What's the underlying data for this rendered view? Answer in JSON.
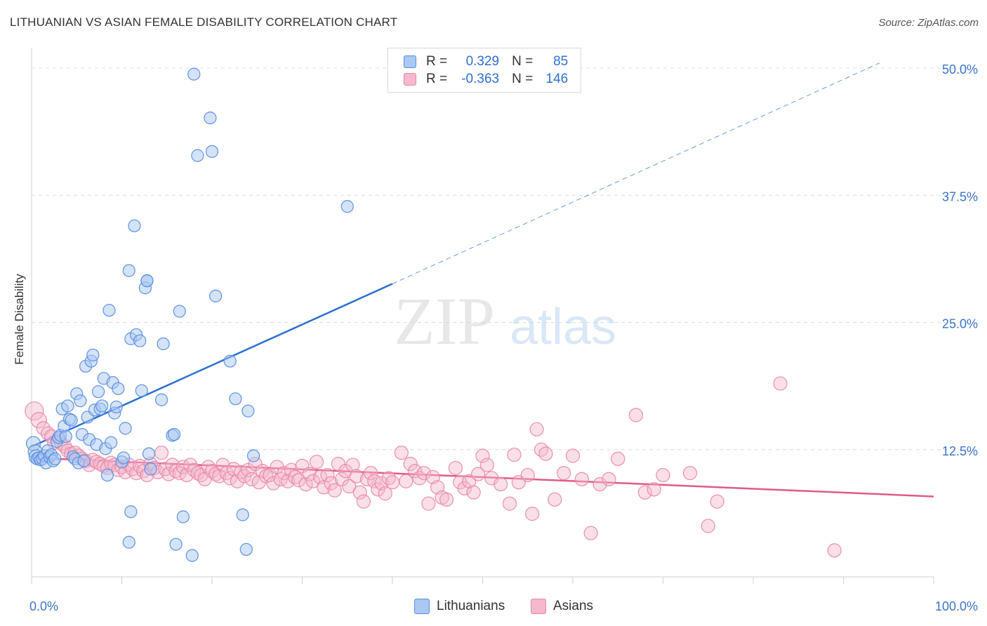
{
  "title": "LITHUANIAN VS ASIAN FEMALE DISABILITY CORRELATION CHART",
  "source": "Source: ZipAtlas.com",
  "watermark": {
    "zip": "ZIP",
    "atlas": "atlas"
  },
  "legend": {
    "r_label": "R =",
    "n_label": "N =",
    "lithuanians": {
      "r": "0.329",
      "n": "85"
    },
    "asians": {
      "r": "-0.363",
      "n": "146"
    }
  },
  "colors": {
    "lithuanians_fill": "#a9c8f2",
    "lithuanians_stroke": "#5b8fe0",
    "lithuanians_line": "#2b6fcf",
    "asians_fill": "#f5b8cc",
    "asians_stroke": "#e886a8",
    "asians_line": "#e05a8a",
    "axis_text": "#3b75c9"
  },
  "chart_data": {
    "type": "scatter",
    "title": "LITHUANIAN VS ASIAN FEMALE DISABILITY CORRELATION CHART",
    "xlabel": "",
    "ylabel": "Female Disability",
    "xlim": [
      0,
      100
    ],
    "ylim": [
      0,
      52
    ],
    "x_tick_labels": [
      "0.0%",
      "100.0%"
    ],
    "y_ticks": [
      12.5,
      25.0,
      37.5,
      50.0
    ],
    "y_tick_labels": [
      "12.5%",
      "25.0%",
      "37.5%",
      "50.0%"
    ],
    "grid": true,
    "legend_position": "bottom",
    "series": [
      {
        "name": "Lithuanians",
        "r": 0.329,
        "n": 85,
        "trend": {
          "x0": 0,
          "y0": 12.8,
          "x1": 40,
          "y1": 28.8,
          "dash_to_x": 94,
          "dash_to_y": 50.5
        },
        "points": [
          [
            0.2,
            13.1
          ],
          [
            0.4,
            12.3
          ],
          [
            0.5,
            11.8
          ],
          [
            0.6,
            11.6
          ],
          [
            0.8,
            11.7
          ],
          [
            1.0,
            11.5
          ],
          [
            1.2,
            11.6
          ],
          [
            1.4,
            11.9
          ],
          [
            1.6,
            11.2
          ],
          [
            1.8,
            12.4
          ],
          [
            2.0,
            11.8
          ],
          [
            2.2,
            12.0
          ],
          [
            2.4,
            11.4
          ],
          [
            2.6,
            11.6
          ],
          [
            2.8,
            13.3
          ],
          [
            3.0,
            13.7
          ],
          [
            3.2,
            13.9
          ],
          [
            3.4,
            16.5
          ],
          [
            3.6,
            14.8
          ],
          [
            3.8,
            13.8
          ],
          [
            4.0,
            16.8
          ],
          [
            4.2,
            15.5
          ],
          [
            4.4,
            15.4
          ],
          [
            4.6,
            11.8
          ],
          [
            4.8,
            11.6
          ],
          [
            5.0,
            18.0
          ],
          [
            5.2,
            11.2
          ],
          [
            5.4,
            17.3
          ],
          [
            5.6,
            14.0
          ],
          [
            5.8,
            11.4
          ],
          [
            6.0,
            20.7
          ],
          [
            6.2,
            15.7
          ],
          [
            6.4,
            13.5
          ],
          [
            6.6,
            21.2
          ],
          [
            6.8,
            21.8
          ],
          [
            7.0,
            16.4
          ],
          [
            7.2,
            13.0
          ],
          [
            7.4,
            18.2
          ],
          [
            7.6,
            16.5
          ],
          [
            7.8,
            16.8
          ],
          [
            8.0,
            19.5
          ],
          [
            8.2,
            12.6
          ],
          [
            8.4,
            10.0
          ],
          [
            8.6,
            26.2
          ],
          [
            8.8,
            13.2
          ],
          [
            9.0,
            19.1
          ],
          [
            9.2,
            16.1
          ],
          [
            9.4,
            16.7
          ],
          [
            9.6,
            18.5
          ],
          [
            10.0,
            11.3
          ],
          [
            10.2,
            11.7
          ],
          [
            10.4,
            14.6
          ],
          [
            10.8,
            30.1
          ],
          [
            11.0,
            23.4
          ],
          [
            11.4,
            34.5
          ],
          [
            11.6,
            23.8
          ],
          [
            12.0,
            23.2
          ],
          [
            12.2,
            18.3
          ],
          [
            12.6,
            28.4
          ],
          [
            12.8,
            29.1
          ],
          [
            13.0,
            12.1
          ],
          [
            13.2,
            10.6
          ],
          [
            14.4,
            17.4
          ],
          [
            14.6,
            22.9
          ],
          [
            15.6,
            13.9
          ],
          [
            15.8,
            14.0
          ],
          [
            16.4,
            26.1
          ],
          [
            16.8,
            5.9
          ],
          [
            18.0,
            49.4
          ],
          [
            18.4,
            41.4
          ],
          [
            19.8,
            45.1
          ],
          [
            20.0,
            41.8
          ],
          [
            20.4,
            27.6
          ],
          [
            22.0,
            21.2
          ],
          [
            22.6,
            17.5
          ],
          [
            23.4,
            6.1
          ],
          [
            23.8,
            2.7
          ],
          [
            24.0,
            16.3
          ],
          [
            24.6,
            11.9
          ],
          [
            35.0,
            36.4
          ],
          [
            12.8,
            29.1
          ],
          [
            11.0,
            6.4
          ],
          [
            10.8,
            3.4
          ],
          [
            16.0,
            3.2
          ],
          [
            17.8,
            2.1
          ]
        ]
      },
      {
        "name": "Asians",
        "r": -0.363,
        "n": 146,
        "trend": {
          "x0": 0,
          "y0": 11.7,
          "x1": 100,
          "y1": 7.9
        },
        "points": [
          [
            0.3,
            16.3
          ],
          [
            0.8,
            15.4
          ],
          [
            1.3,
            14.6
          ],
          [
            1.8,
            14.1
          ],
          [
            2.2,
            13.8
          ],
          [
            2.5,
            13.2
          ],
          [
            3.0,
            13.6
          ],
          [
            3.3,
            13.1
          ],
          [
            3.7,
            12.8
          ],
          [
            4.0,
            12.4
          ],
          [
            4.4,
            12.1
          ],
          [
            4.8,
            12.2
          ],
          [
            5.2,
            11.9
          ],
          [
            5.6,
            11.6
          ],
          [
            6.0,
            11.4
          ],
          [
            6.4,
            11.0
          ],
          [
            6.8,
            11.5
          ],
          [
            7.2,
            11.3
          ],
          [
            7.6,
            11.1
          ],
          [
            8.0,
            10.9
          ],
          [
            8.4,
            10.7
          ],
          [
            8.8,
            11.2
          ],
          [
            9.2,
            11.0
          ],
          [
            9.6,
            10.5
          ],
          [
            10.0,
            10.8
          ],
          [
            10.4,
            10.3
          ],
          [
            10.8,
            11.0
          ],
          [
            11.2,
            10.6
          ],
          [
            11.6,
            10.2
          ],
          [
            12.0,
            10.9
          ],
          [
            12.4,
            10.4
          ],
          [
            12.8,
            10.0
          ],
          [
            13.2,
            11.1
          ],
          [
            13.6,
            10.7
          ],
          [
            14.0,
            10.3
          ],
          [
            14.4,
            12.2
          ],
          [
            14.8,
            10.6
          ],
          [
            15.2,
            10.1
          ],
          [
            15.6,
            11.0
          ],
          [
            16.0,
            10.4
          ],
          [
            16.4,
            10.2
          ],
          [
            16.8,
            10.8
          ],
          [
            17.2,
            10.0
          ],
          [
            17.6,
            11.0
          ],
          [
            18.0,
            10.5
          ],
          [
            18.4,
            10.2
          ],
          [
            18.8,
            10.0
          ],
          [
            19.2,
            9.6
          ],
          [
            19.6,
            10.8
          ],
          [
            20.0,
            10.4
          ],
          [
            20.4,
            10.1
          ],
          [
            20.8,
            9.9
          ],
          [
            21.2,
            11.0
          ],
          [
            21.6,
            10.2
          ],
          [
            22.0,
            9.7
          ],
          [
            22.4,
            10.6
          ],
          [
            22.8,
            9.4
          ],
          [
            23.2,
            10.3
          ],
          [
            23.6,
            9.9
          ],
          [
            24.0,
            10.5
          ],
          [
            24.4,
            9.6
          ],
          [
            24.8,
            11.1
          ],
          [
            25.2,
            9.3
          ],
          [
            25.6,
            10.4
          ],
          [
            26.0,
            9.9
          ],
          [
            26.4,
            10.0
          ],
          [
            26.8,
            9.2
          ],
          [
            27.2,
            10.8
          ],
          [
            27.6,
            9.6
          ],
          [
            28.0,
            10.2
          ],
          [
            28.4,
            9.4
          ],
          [
            28.8,
            10.5
          ],
          [
            29.2,
            9.8
          ],
          [
            29.6,
            9.5
          ],
          [
            30.0,
            10.9
          ],
          [
            30.4,
            9.1
          ],
          [
            30.8,
            10.1
          ],
          [
            31.2,
            9.4
          ],
          [
            31.6,
            11.3
          ],
          [
            32.0,
            9.8
          ],
          [
            32.4,
            8.8
          ],
          [
            32.8,
            10.0
          ],
          [
            33.2,
            9.2
          ],
          [
            33.6,
            8.5
          ],
          [
            34.0,
            11.1
          ],
          [
            34.4,
            9.6
          ],
          [
            34.8,
            10.4
          ],
          [
            35.2,
            8.9
          ],
          [
            35.6,
            11.0
          ],
          [
            36.0,
            9.9
          ],
          [
            36.4,
            8.3
          ],
          [
            36.8,
            7.4
          ],
          [
            37.2,
            9.6
          ],
          [
            37.6,
            10.2
          ],
          [
            38.0,
            9.4
          ],
          [
            38.4,
            8.6
          ],
          [
            38.8,
            9.2
          ],
          [
            39.2,
            8.2
          ],
          [
            39.6,
            9.7
          ],
          [
            40.0,
            9.3
          ],
          [
            41.0,
            12.2
          ],
          [
            41.5,
            9.4
          ],
          [
            42.0,
            11.1
          ],
          [
            42.5,
            10.4
          ],
          [
            43.0,
            9.7
          ],
          [
            43.5,
            10.2
          ],
          [
            44.0,
            7.2
          ],
          [
            44.5,
            9.8
          ],
          [
            45.0,
            8.8
          ],
          [
            45.5,
            7.8
          ],
          [
            46.0,
            7.6
          ],
          [
            47.0,
            10.7
          ],
          [
            47.5,
            9.3
          ],
          [
            48.0,
            8.7
          ],
          [
            48.5,
            9.4
          ],
          [
            49.0,
            8.3
          ],
          [
            49.5,
            10.1
          ],
          [
            50.0,
            11.9
          ],
          [
            50.5,
            11.0
          ],
          [
            51.0,
            9.7
          ],
          [
            52.0,
            9.1
          ],
          [
            53.0,
            7.2
          ],
          [
            53.5,
            12.0
          ],
          [
            54.0,
            9.3
          ],
          [
            55.0,
            10.0
          ],
          [
            55.5,
            6.2
          ],
          [
            56.0,
            14.5
          ],
          [
            56.5,
            12.5
          ],
          [
            57.0,
            12.1
          ],
          [
            58.0,
            7.6
          ],
          [
            59.0,
            10.2
          ],
          [
            60.0,
            11.9
          ],
          [
            61.0,
            9.6
          ],
          [
            62.0,
            4.3
          ],
          [
            63.0,
            9.1
          ],
          [
            64.0,
            9.6
          ],
          [
            65.0,
            11.6
          ],
          [
            67.0,
            15.9
          ],
          [
            68.0,
            8.3
          ],
          [
            69.0,
            8.6
          ],
          [
            70.0,
            10.0
          ],
          [
            73.0,
            10.2
          ],
          [
            75.0,
            5.0
          ],
          [
            76.0,
            7.4
          ],
          [
            83.0,
            19.0
          ],
          [
            89.0,
            2.6
          ]
        ]
      }
    ]
  }
}
